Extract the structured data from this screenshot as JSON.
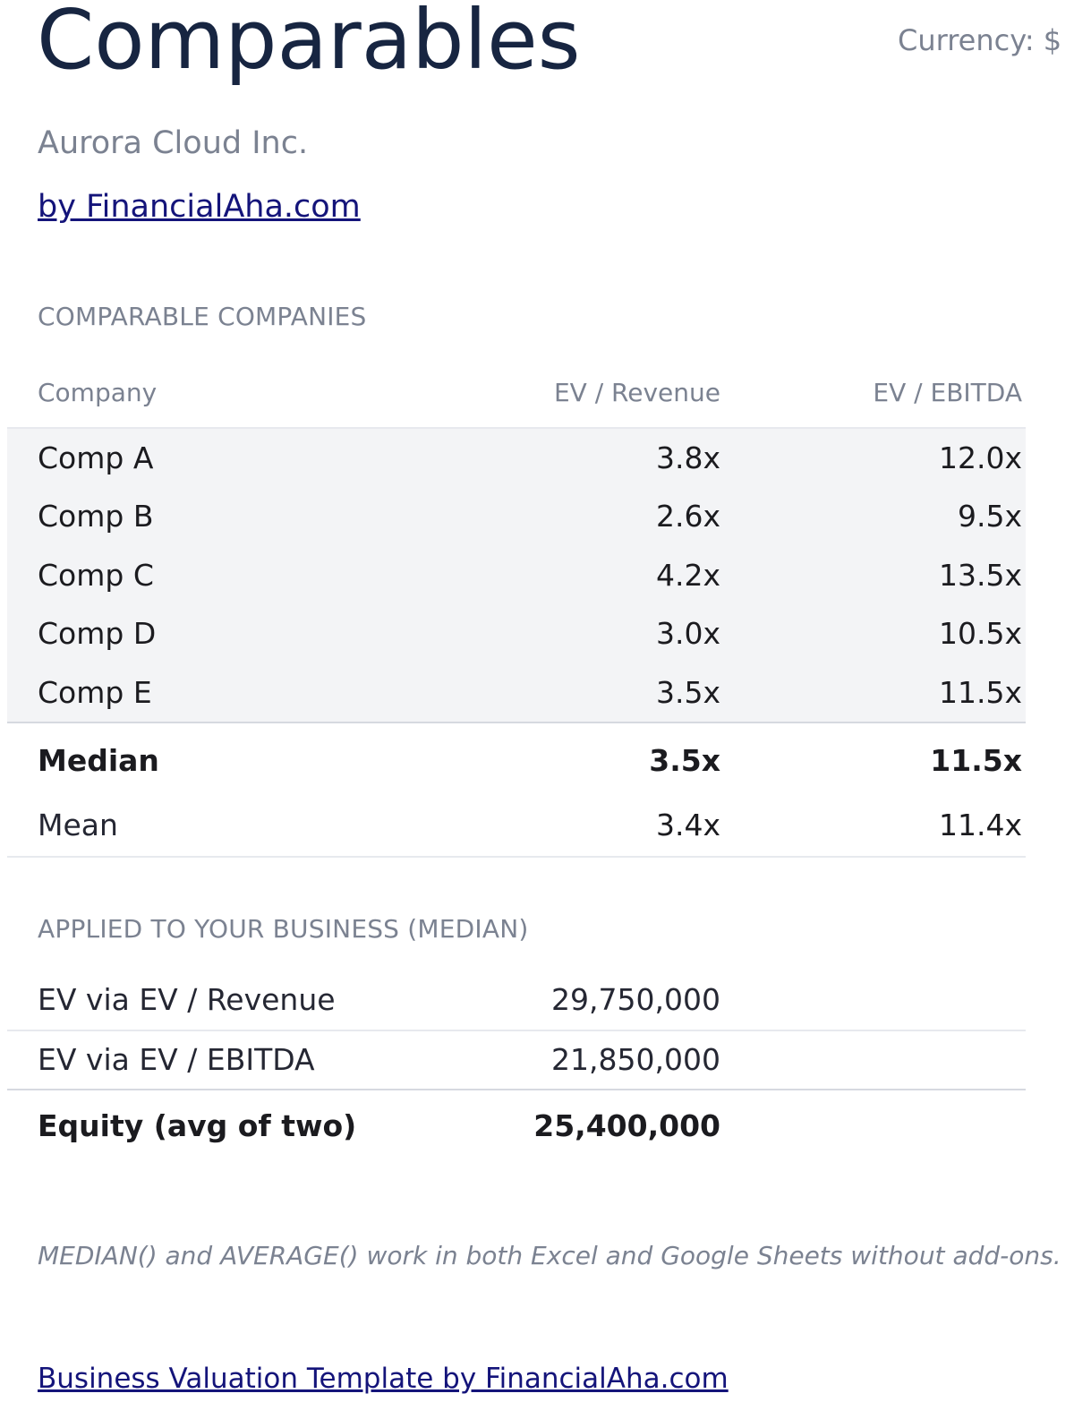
{
  "header": {
    "title": "Comparables",
    "currency": "Currency: $",
    "company": "Aurora Cloud Inc.",
    "byline": "by FinancialAha.com"
  },
  "comparables": {
    "section_label": "COMPARABLE COMPANIES",
    "columns": [
      "Company",
      "EV / Revenue",
      "EV / EBITDA"
    ],
    "rows": [
      {
        "company": "Comp A",
        "ev_revenue": "3.8x",
        "ev_ebitda": "12.0x"
      },
      {
        "company": "Comp B",
        "ev_revenue": "2.6x",
        "ev_ebitda": "9.5x"
      },
      {
        "company": "Comp C",
        "ev_revenue": "4.2x",
        "ev_ebitda": "13.5x"
      },
      {
        "company": "Comp D",
        "ev_revenue": "3.0x",
        "ev_ebitda": "10.5x"
      },
      {
        "company": "Comp E",
        "ev_revenue": "3.5x",
        "ev_ebitda": "11.5x"
      }
    ],
    "median": {
      "label": "Median",
      "ev_revenue": "3.5x",
      "ev_ebitda": "11.5x"
    },
    "mean": {
      "label": "Mean",
      "ev_revenue": "3.4x",
      "ev_ebitda": "11.4x"
    }
  },
  "applied": {
    "section_label": "APPLIED TO YOUR BUSINESS (MEDIAN)",
    "rows": [
      {
        "label": "EV via EV / Revenue",
        "value": "29,750,000"
      },
      {
        "label": "EV via EV / EBITDA",
        "value": "21,850,000"
      },
      {
        "label": "Equity (avg of two)",
        "value": "25,400,000"
      }
    ]
  },
  "note": "MEDIAN() and AVERAGE() work in both Excel and Google Sheets without add-ons.",
  "footer": {
    "link": "Business Valuation Template by FinancialAha.com"
  }
}
